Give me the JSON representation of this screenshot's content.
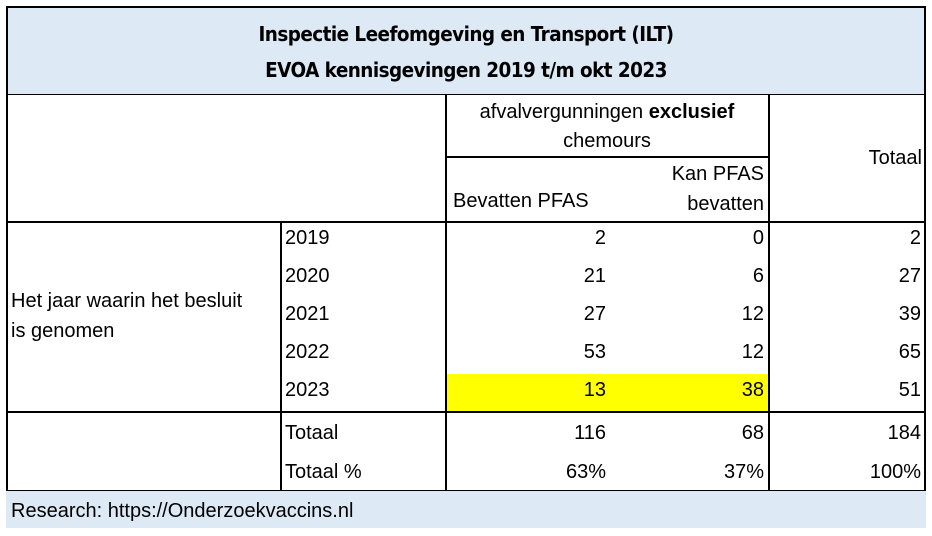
{
  "title": {
    "line1": "Inspectie Leefomgeving en Transport (ILT)",
    "line2": "EVOA kennisgevingen 2019 t/m okt 2023"
  },
  "header": {
    "group_label_prefix": "afvalvergunningen",
    "group_label_bold": "exclusief",
    "group_label_suffix": "chemours",
    "col_bevatten": "Bevatten PFAS",
    "col_kan_line1": "Kan PFAS",
    "col_kan_line2": "bevatten",
    "col_totaal": "Totaal"
  },
  "row_label": {
    "line1": "Het jaar waarin het besluit",
    "line2": "is genomen"
  },
  "rows": [
    {
      "year": "2019",
      "bevatten": "2",
      "kan": "0",
      "totaal": "2"
    },
    {
      "year": "2020",
      "bevatten": "21",
      "kan": "6",
      "totaal": "27"
    },
    {
      "year": "2021",
      "bevatten": "27",
      "kan": "12",
      "totaal": "39"
    },
    {
      "year": "2022",
      "bevatten": "53",
      "kan": "12",
      "totaal": "65"
    },
    {
      "year": "2023",
      "bevatten": "13",
      "kan": "38",
      "totaal": "51",
      "highlight": true
    }
  ],
  "totals": [
    {
      "label": "Totaal",
      "bevatten": "116",
      "kan": "68",
      "totaal": "184"
    },
    {
      "label": "Totaal %",
      "bevatten": "63%",
      "kan": "37%",
      "totaal": "100%"
    }
  ],
  "footer": {
    "text": "Research: https://Onderzoekvaccins.nl"
  },
  "colors": {
    "title_bg": "#dde9f5",
    "highlight": "#ffff00",
    "footer_bg": "#dde9f5"
  }
}
